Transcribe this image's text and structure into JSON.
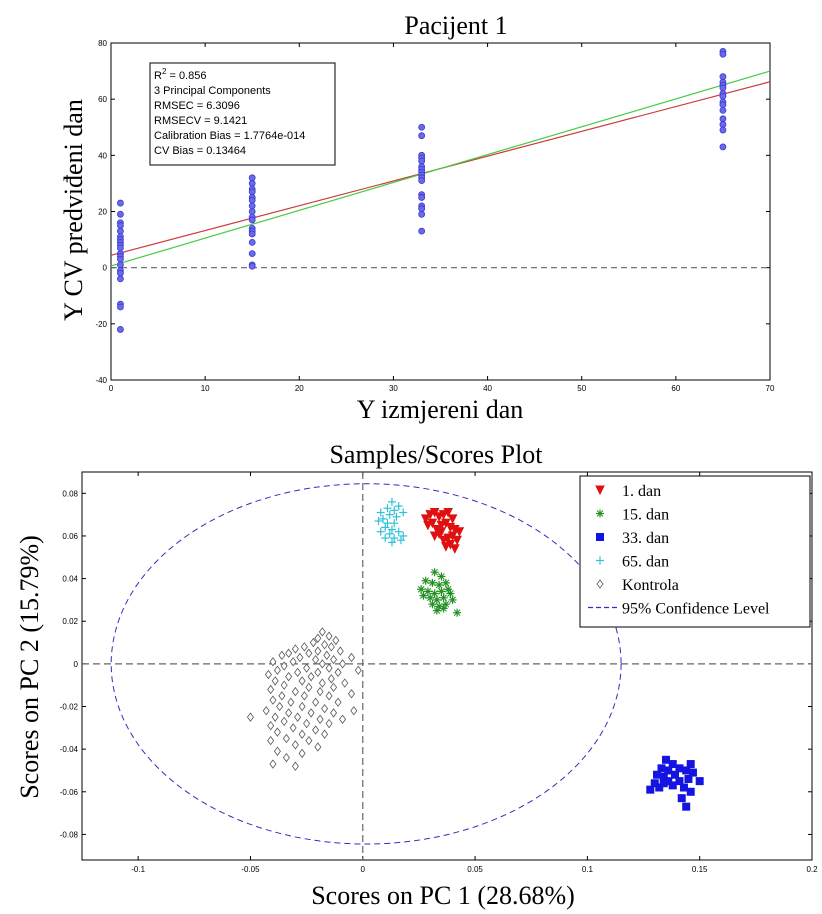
{
  "chart_data": [
    {
      "type": "scatter",
      "title": "Pacijent 1",
      "xlabel": "Y izmjereni dan",
      "ylabel": "Y CV predviđeni dan",
      "xlim": [
        0,
        70
      ],
      "ylim": [
        -40,
        80
      ],
      "xticks": [
        "0",
        "10",
        "20",
        "30",
        "40",
        "50",
        "60",
        "70"
      ],
      "yticks": [
        "80",
        "60",
        "40",
        "20",
        "0",
        "-20",
        "-40"
      ],
      "stats_lines": [
        {
          "label": "R",
          "sup": "2",
          "rest": " = 0.856"
        },
        {
          "label": "3 Principal Components",
          "sup": "",
          "rest": ""
        },
        {
          "label": "RMSEC = 6.3096",
          "sup": "",
          "rest": ""
        },
        {
          "label": "RMSECV = 9.1421",
          "sup": "",
          "rest": ""
        },
        {
          "label": "Calibration Bias = 1.7764e-014",
          "sup": "",
          "rest": ""
        },
        {
          "label": "CV Bias = 0.13464",
          "sup": "",
          "rest": ""
        }
      ],
      "point_color": "#3a3ad4",
      "points": [
        {
          "x": 1,
          "y": 23
        },
        {
          "x": 1,
          "y": 19
        },
        {
          "x": 1,
          "y": 16
        },
        {
          "x": 1,
          "y": 15
        },
        {
          "x": 1,
          "y": 13
        },
        {
          "x": 1,
          "y": 11
        },
        {
          "x": 1,
          "y": 10
        },
        {
          "x": 1,
          "y": 9
        },
        {
          "x": 1,
          "y": 8
        },
        {
          "x": 1,
          "y": 7
        },
        {
          "x": 1,
          "y": 5
        },
        {
          "x": 1,
          "y": 4
        },
        {
          "x": 1,
          "y": 3
        },
        {
          "x": 1,
          "y": 1
        },
        {
          "x": 1,
          "y": -1
        },
        {
          "x": 1,
          "y": -2
        },
        {
          "x": 1,
          "y": -4
        },
        {
          "x": 1,
          "y": -13
        },
        {
          "x": 1,
          "y": -14
        },
        {
          "x": 1,
          "y": -22
        },
        {
          "x": 15,
          "y": 32
        },
        {
          "x": 15,
          "y": 30
        },
        {
          "x": 15,
          "y": 28
        },
        {
          "x": 15,
          "y": 27
        },
        {
          "x": 15,
          "y": 25
        },
        {
          "x": 15,
          "y": 24
        },
        {
          "x": 15,
          "y": 22
        },
        {
          "x": 15,
          "y": 20
        },
        {
          "x": 15,
          "y": 18
        },
        {
          "x": 15,
          "y": 17
        },
        {
          "x": 15,
          "y": 14
        },
        {
          "x": 15,
          "y": 13
        },
        {
          "x": 15,
          "y": 12
        },
        {
          "x": 15,
          "y": 9
        },
        {
          "x": 15,
          "y": 5
        },
        {
          "x": 15,
          "y": 1
        },
        {
          "x": 15,
          "y": 0.5
        },
        {
          "x": 33,
          "y": 50
        },
        {
          "x": 33,
          "y": 47
        },
        {
          "x": 33,
          "y": 40
        },
        {
          "x": 33,
          "y": 39
        },
        {
          "x": 33,
          "y": 38
        },
        {
          "x": 33,
          "y": 36
        },
        {
          "x": 33,
          "y": 35
        },
        {
          "x": 33,
          "y": 34
        },
        {
          "x": 33,
          "y": 33
        },
        {
          "x": 33,
          "y": 32
        },
        {
          "x": 33,
          "y": 31
        },
        {
          "x": 33,
          "y": 26
        },
        {
          "x": 33,
          "y": 25
        },
        {
          "x": 33,
          "y": 22
        },
        {
          "x": 33,
          "y": 21
        },
        {
          "x": 33,
          "y": 19
        },
        {
          "x": 33,
          "y": 13
        },
        {
          "x": 65,
          "y": 77
        },
        {
          "x": 65,
          "y": 76
        },
        {
          "x": 65,
          "y": 68
        },
        {
          "x": 65,
          "y": 66
        },
        {
          "x": 65,
          "y": 65
        },
        {
          "x": 65,
          "y": 64
        },
        {
          "x": 65,
          "y": 62
        },
        {
          "x": 65,
          "y": 61
        },
        {
          "x": 65,
          "y": 59
        },
        {
          "x": 65,
          "y": 58
        },
        {
          "x": 65,
          "y": 56
        },
        {
          "x": 65,
          "y": 53
        },
        {
          "x": 65,
          "y": 51
        },
        {
          "x": 65,
          "y": 49
        },
        {
          "x": 65,
          "y": 43
        }
      ],
      "lines": [
        {
          "color": "#cc3b3b",
          "x": [
            0,
            70
          ],
          "y": [
            4.4,
            66.2
          ]
        },
        {
          "color": "#44cc44",
          "x": [
            0,
            70
          ],
          "y": [
            0.6,
            70
          ]
        }
      ],
      "zero_line": {
        "y": 0,
        "style": "dashed",
        "color": "#666666"
      }
    },
    {
      "type": "scatter",
      "title": "Samples/Scores Plot",
      "xlabel": "Scores on PC 1 (28.68%)",
      "ylabel": "Scores on PC 2 (15.79%)",
      "xlim": [
        -0.125,
        0.2
      ],
      "ylim": [
        -0.092,
        0.09
      ],
      "xticks": [
        "-0.1",
        "-0.05",
        "0",
        "0.05",
        "0.1",
        "0.15",
        "0.2"
      ],
      "yticks": [
        "0.08",
        "0.06",
        "0.04",
        "0.02",
        "0",
        "-0.02",
        "-0.04",
        "-0.06",
        "-0.08"
      ],
      "legend_position": "top-right",
      "series": [
        {
          "name": "1. dan",
          "marker": "triangle-down",
          "color": "#e01010",
          "points": [
            [
              0.028,
              0.068
            ],
            [
              0.03,
              0.07
            ],
            [
              0.032,
              0.071
            ],
            [
              0.034,
              0.069
            ],
            [
              0.036,
              0.07
            ],
            [
              0.038,
              0.071
            ],
            [
              0.04,
              0.068
            ],
            [
              0.029,
              0.065
            ],
            [
              0.031,
              0.066
            ],
            [
              0.033,
              0.063
            ],
            [
              0.035,
              0.065
            ],
            [
              0.037,
              0.066
            ],
            [
              0.039,
              0.064
            ],
            [
              0.041,
              0.063
            ],
            [
              0.032,
              0.06
            ],
            [
              0.034,
              0.061
            ],
            [
              0.036,
              0.058
            ],
            [
              0.038,
              0.059
            ],
            [
              0.04,
              0.06
            ],
            [
              0.042,
              0.058
            ],
            [
              0.037,
              0.055
            ],
            [
              0.039,
              0.056
            ],
            [
              0.041,
              0.054
            ],
            [
              0.035,
              0.062
            ],
            [
              0.043,
              0.062
            ]
          ]
        },
        {
          "name": "15. dan",
          "marker": "star",
          "color": "#209020",
          "points": [
            [
              0.032,
              0.043
            ],
            [
              0.035,
              0.041
            ],
            [
              0.028,
              0.039
            ],
            [
              0.031,
              0.038
            ],
            [
              0.034,
              0.037
            ],
            [
              0.037,
              0.038
            ],
            [
              0.026,
              0.035
            ],
            [
              0.029,
              0.034
            ],
            [
              0.032,
              0.033
            ],
            [
              0.035,
              0.034
            ],
            [
              0.038,
              0.035
            ],
            [
              0.03,
              0.031
            ],
            [
              0.033,
              0.03
            ],
            [
              0.036,
              0.031
            ],
            [
              0.031,
              0.028
            ],
            [
              0.034,
              0.027
            ],
            [
              0.037,
              0.028
            ],
            [
              0.04,
              0.03
            ],
            [
              0.033,
              0.025
            ],
            [
              0.036,
              0.026
            ],
            [
              0.042,
              0.024
            ],
            [
              0.027,
              0.032
            ],
            [
              0.039,
              0.033
            ]
          ]
        },
        {
          "name": "33. dan",
          "marker": "square",
          "color": "#1414e0",
          "points": [
            [
              0.135,
              -0.045
            ],
            [
              0.138,
              -0.047
            ],
            [
              0.146,
              -0.047
            ],
            [
              0.133,
              -0.049
            ],
            [
              0.136,
              -0.05
            ],
            [
              0.141,
              -0.049
            ],
            [
              0.144,
              -0.05
            ],
            [
              0.131,
              -0.052
            ],
            [
              0.134,
              -0.053
            ],
            [
              0.139,
              -0.052
            ],
            [
              0.147,
              -0.051
            ],
            [
              0.136,
              -0.055
            ],
            [
              0.141,
              -0.055
            ],
            [
              0.145,
              -0.054
            ],
            [
              0.15,
              -0.055
            ],
            [
              0.13,
              -0.056
            ],
            [
              0.132,
              -0.058
            ],
            [
              0.138,
              -0.057
            ],
            [
              0.143,
              -0.058
            ],
            [
              0.128,
              -0.059
            ],
            [
              0.146,
              -0.06
            ],
            [
              0.142,
              -0.063
            ],
            [
              0.144,
              -0.067
            ],
            [
              0.134,
              -0.056
            ]
          ]
        },
        {
          "name": "65. dan",
          "marker": "plus",
          "color": "#30c0d8",
          "points": [
            [
              0.013,
              0.076
            ],
            [
              0.016,
              0.074
            ],
            [
              0.011,
              0.073
            ],
            [
              0.014,
              0.072
            ],
            [
              0.008,
              0.071
            ],
            [
              0.018,
              0.071
            ],
            [
              0.012,
              0.07
            ],
            [
              0.015,
              0.069
            ],
            [
              0.009,
              0.068
            ],
            [
              0.007,
              0.067
            ],
            [
              0.011,
              0.066
            ],
            [
              0.014,
              0.066
            ],
            [
              0.01,
              0.064
            ],
            [
              0.013,
              0.063
            ],
            [
              0.008,
              0.062
            ],
            [
              0.012,
              0.061
            ],
            [
              0.016,
              0.062
            ],
            [
              0.018,
              0.06
            ],
            [
              0.01,
              0.059
            ],
            [
              0.014,
              0.059
            ],
            [
              0.017,
              0.058
            ],
            [
              0.013,
              0.057
            ]
          ]
        },
        {
          "name": "Kontrola",
          "marker": "diamond",
          "color": "#555555",
          "points": [
            [
              -0.018,
              0.015
            ],
            [
              -0.015,
              0.013
            ],
            [
              -0.02,
              0.012
            ],
            [
              -0.012,
              0.011
            ],
            [
              -0.022,
              0.01
            ],
            [
              -0.017,
              0.009
            ],
            [
              -0.026,
              0.008
            ],
            [
              -0.014,
              0.008
            ],
            [
              -0.03,
              0.007
            ],
            [
              -0.02,
              0.006
            ],
            [
              -0.01,
              0.006
            ],
            [
              -0.033,
              0.005
            ],
            [
              -0.024,
              0.005
            ],
            [
              -0.016,
              0.004
            ],
            [
              -0.036,
              0.004
            ],
            [
              -0.028,
              0.003
            ],
            [
              -0.005,
              0.003
            ],
            [
              -0.021,
              0.002
            ],
            [
              -0.013,
              0.002
            ],
            [
              -0.04,
              0.001
            ],
            [
              -0.031,
              0.001
            ],
            [
              -0.018,
              0.0
            ],
            [
              -0.009,
              0.0
            ],
            [
              -0.035,
              -0.001
            ],
            [
              -0.025,
              -0.002
            ],
            [
              -0.015,
              -0.002
            ],
            [
              -0.038,
              -0.003
            ],
            [
              -0.029,
              -0.004
            ],
            [
              -0.02,
              -0.004
            ],
            [
              -0.011,
              -0.004
            ],
            [
              -0.002,
              -0.003
            ],
            [
              -0.042,
              -0.005
            ],
            [
              -0.033,
              -0.006
            ],
            [
              -0.023,
              -0.006
            ],
            [
              -0.014,
              -0.007
            ],
            [
              -0.039,
              -0.008
            ],
            [
              -0.027,
              -0.008
            ],
            [
              -0.018,
              -0.009
            ],
            [
              -0.008,
              -0.009
            ],
            [
              -0.035,
              -0.01
            ],
            [
              -0.024,
              -0.011
            ],
            [
              -0.013,
              -0.011
            ],
            [
              -0.041,
              -0.012
            ],
            [
              -0.03,
              -0.013
            ],
            [
              -0.019,
              -0.013
            ],
            [
              -0.036,
              -0.015
            ],
            [
              -0.026,
              -0.015
            ],
            [
              -0.015,
              -0.015
            ],
            [
              -0.005,
              -0.014
            ],
            [
              -0.04,
              -0.017
            ],
            [
              -0.032,
              -0.018
            ],
            [
              -0.021,
              -0.018
            ],
            [
              -0.011,
              -0.018
            ],
            [
              -0.037,
              -0.02
            ],
            [
              -0.027,
              -0.02
            ],
            [
              -0.017,
              -0.021
            ],
            [
              -0.004,
              -0.022
            ],
            [
              -0.043,
              -0.022
            ],
            [
              -0.033,
              -0.023
            ],
            [
              -0.023,
              -0.023
            ],
            [
              -0.013,
              -0.023
            ],
            [
              -0.039,
              -0.025
            ],
            [
              -0.029,
              -0.025
            ],
            [
              -0.019,
              -0.026
            ],
            [
              -0.009,
              -0.026
            ],
            [
              -0.05,
              -0.025
            ],
            [
              -0.035,
              -0.027
            ],
            [
              -0.025,
              -0.028
            ],
            [
              -0.015,
              -0.028
            ],
            [
              -0.041,
              -0.029
            ],
            [
              -0.031,
              -0.03
            ],
            [
              -0.021,
              -0.031
            ],
            [
              -0.038,
              -0.032
            ],
            [
              -0.027,
              -0.033
            ],
            [
              -0.017,
              -0.033
            ],
            [
              -0.034,
              -0.035
            ],
            [
              -0.024,
              -0.036
            ],
            [
              -0.03,
              -0.038
            ],
            [
              -0.041,
              -0.036
            ],
            [
              -0.02,
              -0.039
            ],
            [
              -0.038,
              -0.041
            ],
            [
              -0.027,
              -0.042
            ],
            [
              -0.034,
              -0.044
            ],
            [
              -0.04,
              -0.047
            ],
            [
              -0.03,
              -0.048
            ]
          ]
        }
      ],
      "legend_extra": "95% Confidence Level",
      "ellipse": {
        "cx": 0.0015,
        "cy": 0.0,
        "rx": 0.1135,
        "ry": 0.0845,
        "color": "#3030c0",
        "style": "dashed"
      },
      "zero_lines": {
        "color": "#666666",
        "style": "dashed"
      }
    }
  ]
}
